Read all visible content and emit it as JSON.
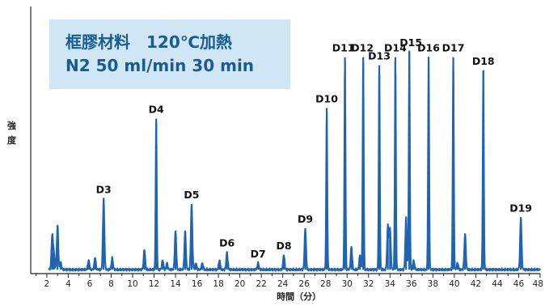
{
  "chart_data": {
    "type": "line",
    "ylabel": [
      "強",
      "度"
    ],
    "xlabel": "時間（分）",
    "xlim": [
      0.5,
      48
    ],
    "xticks": [
      2,
      4,
      6,
      8,
      10,
      12,
      14,
      16,
      18,
      20,
      22,
      24,
      26,
      28,
      30,
      32,
      34,
      36,
      38,
      40,
      42,
      44,
      46,
      48
    ],
    "ylim": [
      0,
      100
    ],
    "line_color": "#1f64b0",
    "info_box": {
      "line1": "框膠材料　120℃加熱",
      "line2": "N2 50 ml/min 30 min"
    },
    "baseline": 1.5,
    "peaks": [
      {
        "x": 2.5,
        "y": 14
      },
      {
        "x": 2.65,
        "y": 8
      },
      {
        "x": 3.0,
        "y": 18
      },
      {
        "x": 3.3,
        "y": 4
      },
      {
        "x": 5.9,
        "y": 5
      },
      {
        "x": 6.5,
        "y": 6
      },
      {
        "x": 7.3,
        "y": 28
      },
      {
        "x": 8.1,
        "y": 6
      },
      {
        "x": 11.1,
        "y": 9
      },
      {
        "x": 12.2,
        "y": 58
      },
      {
        "x": 12.8,
        "y": 5
      },
      {
        "x": 13.2,
        "y": 4
      },
      {
        "x": 14.0,
        "y": 16
      },
      {
        "x": 14.9,
        "y": 16
      },
      {
        "x": 15.5,
        "y": 26
      },
      {
        "x": 15.9,
        "y": 4
      },
      {
        "x": 16.5,
        "y": 4
      },
      {
        "x": 18.1,
        "y": 5
      },
      {
        "x": 18.8,
        "y": 8
      },
      {
        "x": 21.7,
        "y": 4
      },
      {
        "x": 24.1,
        "y": 7
      },
      {
        "x": 26.1,
        "y": 17
      },
      {
        "x": 28.1,
        "y": 62
      },
      {
        "x": 29.8,
        "y": 81
      },
      {
        "x": 30.4,
        "y": 10
      },
      {
        "x": 31.2,
        "y": 7
      },
      {
        "x": 31.5,
        "y": 81
      },
      {
        "x": 33.0,
        "y": 78
      },
      {
        "x": 33.8,
        "y": 18
      },
      {
        "x": 34.0,
        "y": 17
      },
      {
        "x": 34.5,
        "y": 81
      },
      {
        "x": 35.5,
        "y": 21
      },
      {
        "x": 35.8,
        "y": 83
      },
      {
        "x": 36.2,
        "y": 5
      },
      {
        "x": 37.6,
        "y": 81
      },
      {
        "x": 39.9,
        "y": 81
      },
      {
        "x": 40.3,
        "y": 4
      },
      {
        "x": 41.0,
        "y": 15
      },
      {
        "x": 42.7,
        "y": 76
      },
      {
        "x": 46.2,
        "y": 21
      }
    ],
    "annotations": [
      {
        "label": "D3",
        "x": 7.3,
        "y": 28
      },
      {
        "label": "D4",
        "x": 12.2,
        "y": 58
      },
      {
        "label": "D5",
        "x": 15.5,
        "y": 26
      },
      {
        "label": "D6",
        "x": 18.8,
        "y": 8
      },
      {
        "label": "D7",
        "x": 21.7,
        "y": 4
      },
      {
        "label": "D8",
        "x": 24.1,
        "y": 7
      },
      {
        "label": "D9",
        "x": 26.1,
        "y": 17
      },
      {
        "label": "D10",
        "x": 28.1,
        "y": 62
      },
      {
        "label": "D11",
        "x": 29.8,
        "y": 81
      },
      {
        "label": "D12",
        "x": 31.5,
        "y": 81
      },
      {
        "label": "D13",
        "x": 33.0,
        "y": 78
      },
      {
        "label": "D14",
        "x": 34.5,
        "y": 81
      },
      {
        "label": "D15",
        "x": 35.8,
        "y": 83
      },
      {
        "label": "D16",
        "x": 37.6,
        "y": 81
      },
      {
        "label": "D17",
        "x": 39.9,
        "y": 81
      },
      {
        "label": "D18",
        "x": 42.7,
        "y": 76
      },
      {
        "label": "D19",
        "x": 46.2,
        "y": 21
      }
    ]
  }
}
